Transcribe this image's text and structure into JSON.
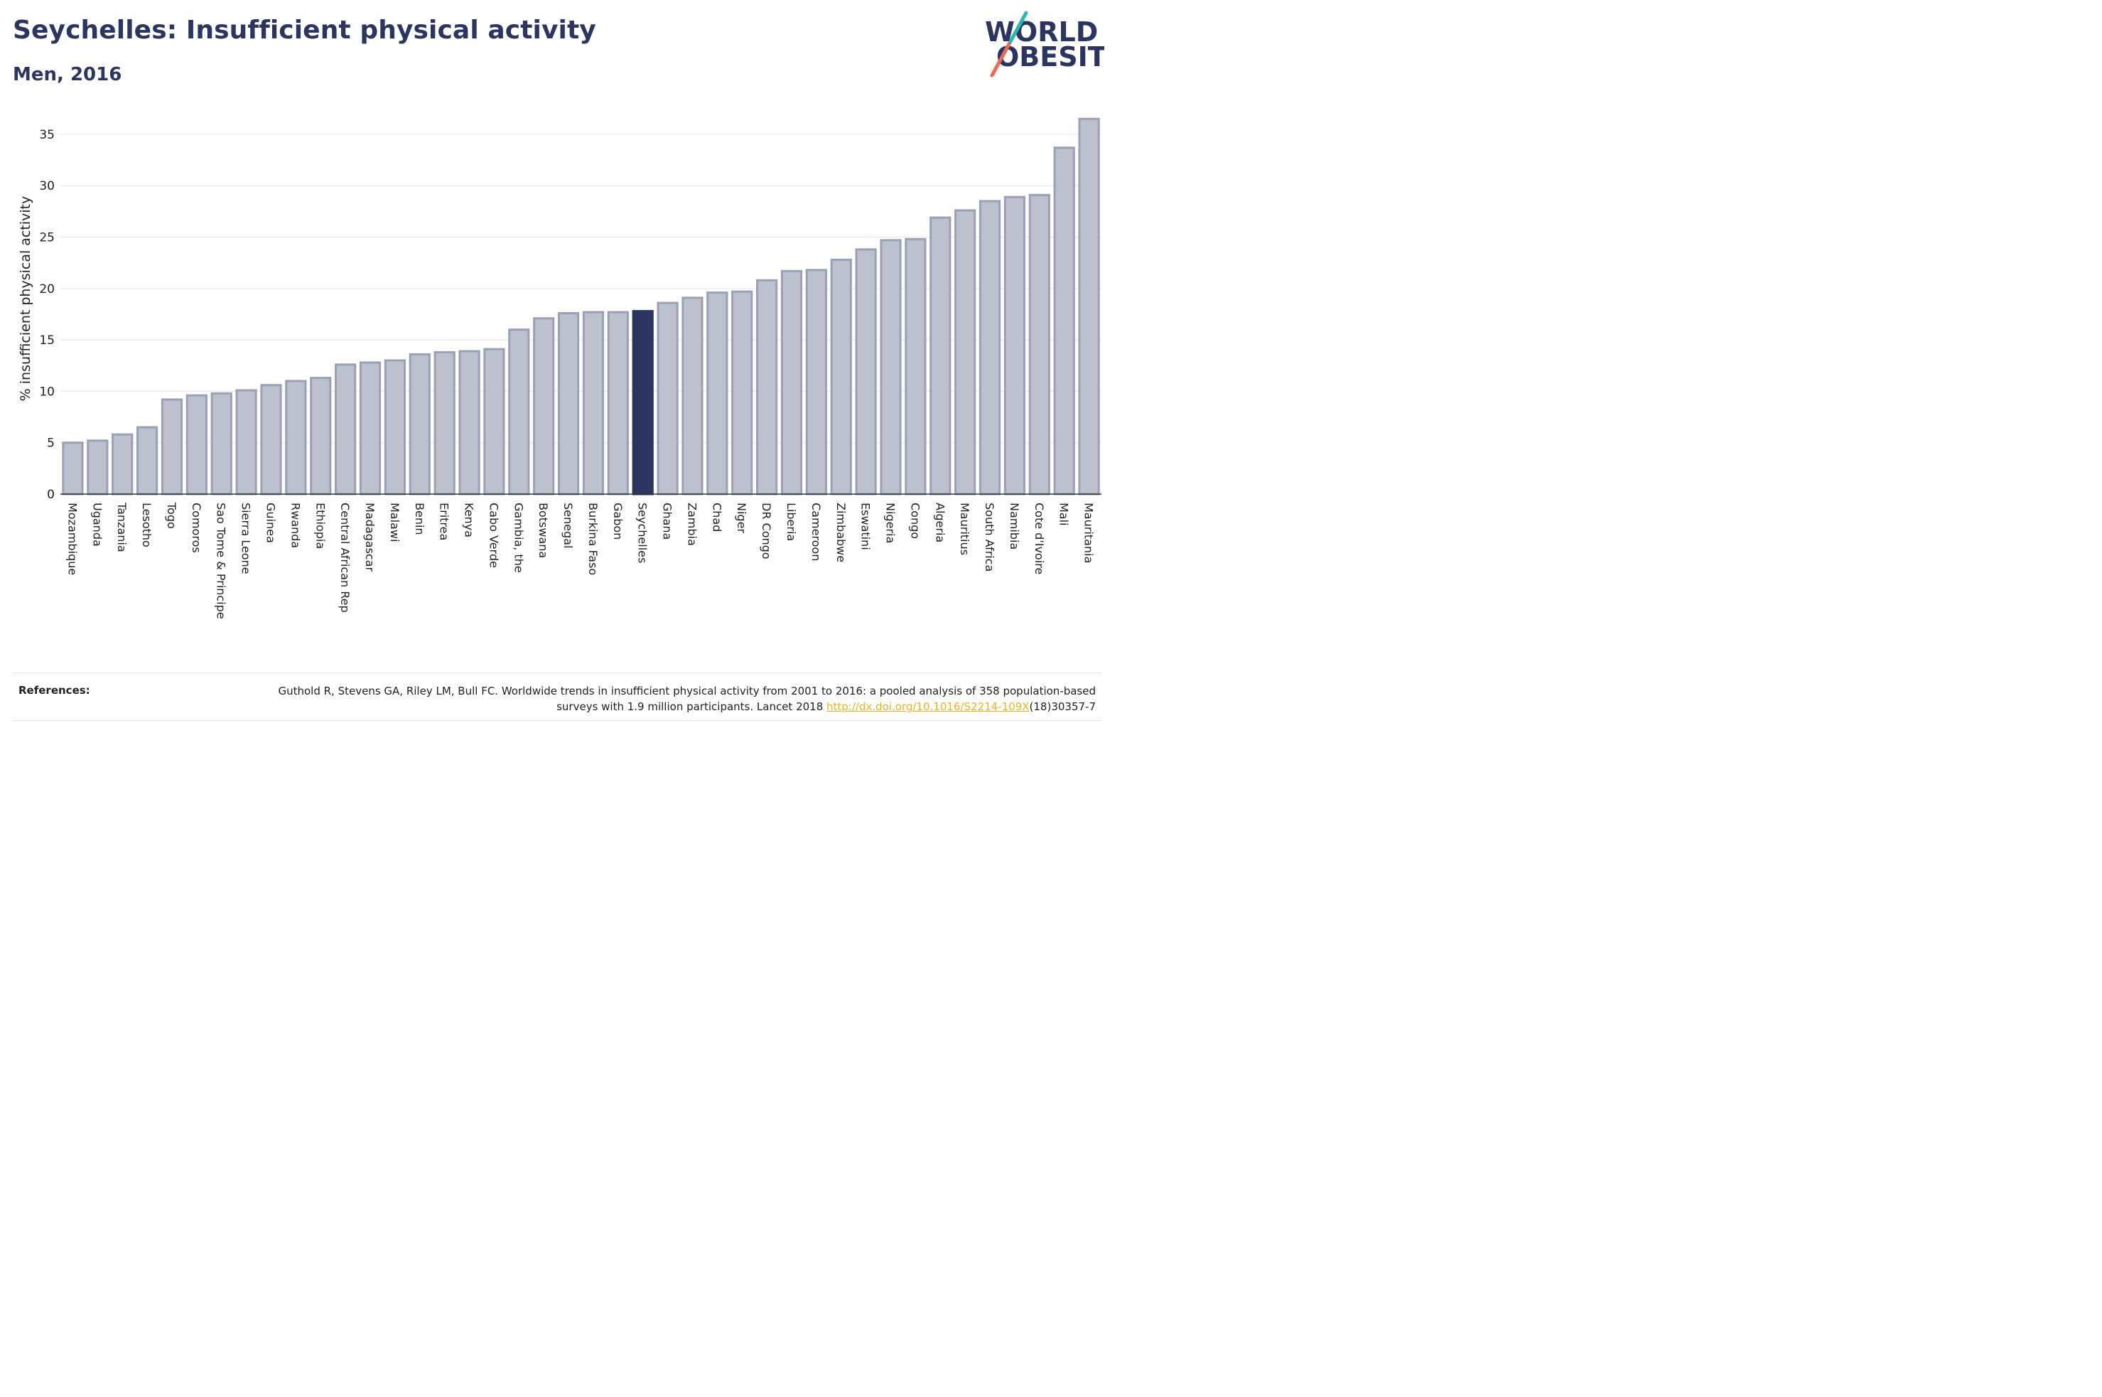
{
  "header": {
    "title": "Seychelles: Insufficient physical activity",
    "subtitle": "Men, 2016"
  },
  "logo": {
    "line1": "WORLD",
    "line2": "OBESITY",
    "colors": {
      "text": "#2b3560",
      "slash_top": "#2bb8b0",
      "slash_bottom": "#ea6a5a"
    }
  },
  "colors": {
    "bar_fill": "#bdc1ce",
    "bar_stroke": "#9aa0b6",
    "highlight": "#2b3560",
    "grid": "#e8e8e8",
    "axis": "#333333"
  },
  "chart_data": {
    "type": "bar",
    "title": "Seychelles: Insufficient physical activity",
    "subtitle": "Men, 2016",
    "xlabel": "",
    "ylabel": "% insufficient physical activity",
    "ylim": [
      0,
      37
    ],
    "yticks": [
      0,
      5,
      10,
      15,
      20,
      25,
      30,
      35
    ],
    "grid": true,
    "highlight": "Seychelles",
    "categories": [
      "Mozambique",
      "Uganda",
      "Tanzania",
      "Lesotho",
      "Togo",
      "Comoros",
      "Sao Tome & Principe",
      "Sierra Leone",
      "Guinea",
      "Rwanda",
      "Ethiopia",
      "Central African Rep",
      "Madagascar",
      "Malawi",
      "Benin",
      "Eritrea",
      "Kenya",
      "Cabo Verde",
      "Gambia, the",
      "Botswana",
      "Senegal",
      "Burkina Faso",
      "Gabon",
      "Seychelles",
      "Ghana",
      "Zambia",
      "Chad",
      "Niger",
      "DR Congo",
      "Liberia",
      "Cameroon",
      "Zimbabwe",
      "Eswatini",
      "Nigeria",
      "Congo",
      "Algeria",
      "Mauritius",
      "South Africa",
      "Namibia",
      "Cote d'Ivoire",
      "Mali",
      "Mauritania"
    ],
    "values": [
      5.0,
      5.2,
      5.8,
      6.5,
      9.2,
      9.6,
      9.8,
      10.1,
      10.6,
      11.0,
      11.3,
      12.6,
      12.8,
      13.0,
      13.6,
      13.8,
      13.9,
      14.1,
      16.0,
      17.1,
      17.6,
      17.7,
      17.7,
      17.8,
      18.6,
      19.1,
      19.6,
      19.7,
      20.8,
      21.7,
      21.8,
      22.8,
      23.8,
      24.7,
      24.8,
      26.9,
      27.6,
      28.5,
      28.9,
      29.1,
      33.7,
      36.5
    ]
  },
  "references": {
    "heading": "References:",
    "text_before": "Guthold R, Stevens GA, Riley LM, Bull FC. Worldwide trends in insufficient physical activity from 2001 to 2016: a pooled analysis of 358 population-based surveys with 1.9 million participants. Lancet 2018 ",
    "link": "http://dx.doi.org/10.1016/S2214-109X",
    "text_after": "(18)30357-7"
  }
}
